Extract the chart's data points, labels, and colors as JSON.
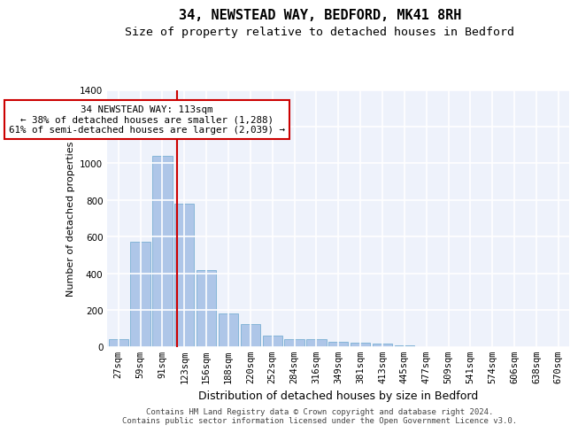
{
  "title": "34, NEWSTEAD WAY, BEDFORD, MK41 8RH",
  "subtitle": "Size of property relative to detached houses in Bedford",
  "xlabel": "Distribution of detached houses by size in Bedford",
  "ylabel": "Number of detached properties",
  "categories": [
    "27sqm",
    "59sqm",
    "91sqm",
    "123sqm",
    "156sqm",
    "188sqm",
    "220sqm",
    "252sqm",
    "284sqm",
    "316sqm",
    "349sqm",
    "381sqm",
    "413sqm",
    "445sqm",
    "477sqm",
    "509sqm",
    "541sqm",
    "574sqm",
    "606sqm",
    "638sqm",
    "670sqm"
  ],
  "values": [
    40,
    570,
    1040,
    780,
    420,
    180,
    125,
    60,
    42,
    42,
    25,
    20,
    15,
    8,
    0,
    0,
    0,
    0,
    0,
    0,
    0
  ],
  "bar_color": "#aec6e8",
  "bar_edgecolor": "#7aafd4",
  "background_color": "#eef2fb",
  "grid_color": "#ffffff",
  "vline_color": "#cc0000",
  "annotation_text": "34 NEWSTEAD WAY: 113sqm\n← 38% of detached houses are smaller (1,288)\n61% of semi-detached houses are larger (2,039) →",
  "annotation_box_color": "#cc0000",
  "ylim": [
    0,
    1400
  ],
  "yticks": [
    0,
    200,
    400,
    600,
    800,
    1000,
    1200,
    1400
  ],
  "footer_line1": "Contains HM Land Registry data © Crown copyright and database right 2024.",
  "footer_line2": "Contains public sector information licensed under the Open Government Licence v3.0.",
  "title_fontsize": 11,
  "subtitle_fontsize": 9.5,
  "xlabel_fontsize": 9,
  "ylabel_fontsize": 8,
  "tick_fontsize": 7.5,
  "annotation_fontsize": 7.8,
  "footer_fontsize": 6.5
}
